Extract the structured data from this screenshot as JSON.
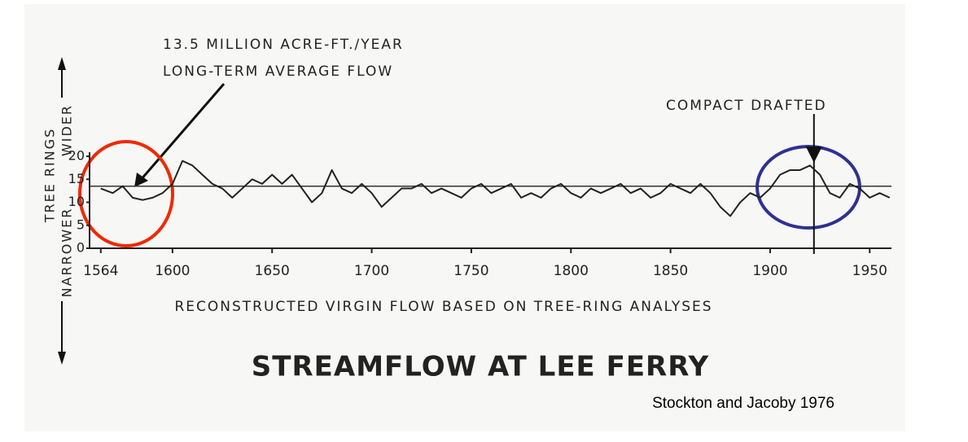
{
  "chart_data": {
    "type": "line",
    "title": "STREAMFLOW AT LEE FERRY",
    "x_label": "RECONSTRUCTED VIRGIN FLOW BASED ON TREE-RING ANALYSES",
    "y_label": "TREE RINGS",
    "y_label_up": "WIDER",
    "y_label_down": "NARROWER",
    "annotation_average": [
      "13.5 MILLION ACRE-FT./YEAR",
      "LONG-TERM AVERAGE FLOW"
    ],
    "average": 13.5,
    "annotation_compact": "COMPACT DRAFTED",
    "compact_year": 1922,
    "source": "Stockton and Jacoby 1976",
    "x": [
      1564,
      1570,
      1575,
      1580,
      1585,
      1590,
      1595,
      1600,
      1605,
      1610,
      1615,
      1620,
      1625,
      1630,
      1635,
      1640,
      1645,
      1650,
      1655,
      1660,
      1665,
      1670,
      1675,
      1680,
      1685,
      1690,
      1695,
      1700,
      1705,
      1710,
      1715,
      1720,
      1725,
      1730,
      1735,
      1740,
      1745,
      1750,
      1755,
      1760,
      1765,
      1770,
      1775,
      1780,
      1785,
      1790,
      1795,
      1800,
      1805,
      1810,
      1815,
      1820,
      1825,
      1830,
      1835,
      1840,
      1845,
      1850,
      1855,
      1860,
      1865,
      1870,
      1875,
      1880,
      1885,
      1890,
      1895,
      1900,
      1905,
      1910,
      1915,
      1920,
      1925,
      1930,
      1935,
      1940,
      1945,
      1950,
      1955,
      1960
    ],
    "series": [
      {
        "color": "#222222",
        "values": [
          13,
          12,
          13.5,
          11,
          10.5,
          11,
          12,
          14,
          19,
          18,
          16,
          14,
          13,
          11,
          13,
          15,
          14,
          16,
          14,
          16,
          13,
          10,
          12,
          17,
          13,
          12,
          14,
          12,
          9,
          11,
          13,
          13,
          14,
          12,
          13,
          12,
          11,
          13,
          14,
          12,
          13,
          14,
          11,
          12,
          11,
          13,
          14,
          12,
          11,
          13,
          12,
          13,
          14,
          12,
          13,
          11,
          12,
          14,
          13,
          12,
          14,
          12,
          9,
          7,
          10,
          12,
          11,
          13,
          16,
          17,
          17,
          18,
          16,
          12,
          11,
          14,
          13,
          11,
          12,
          11
        ]
      }
    ],
    "xlim": [
      1560,
      1965
    ],
    "ylim": [
      0,
      20
    ],
    "xticks": [
      1564,
      1600,
      1650,
      1700,
      1750,
      1800,
      1850,
      1900,
      1950
    ],
    "yticks": [
      0,
      5,
      10,
      15,
      20
    ]
  }
}
